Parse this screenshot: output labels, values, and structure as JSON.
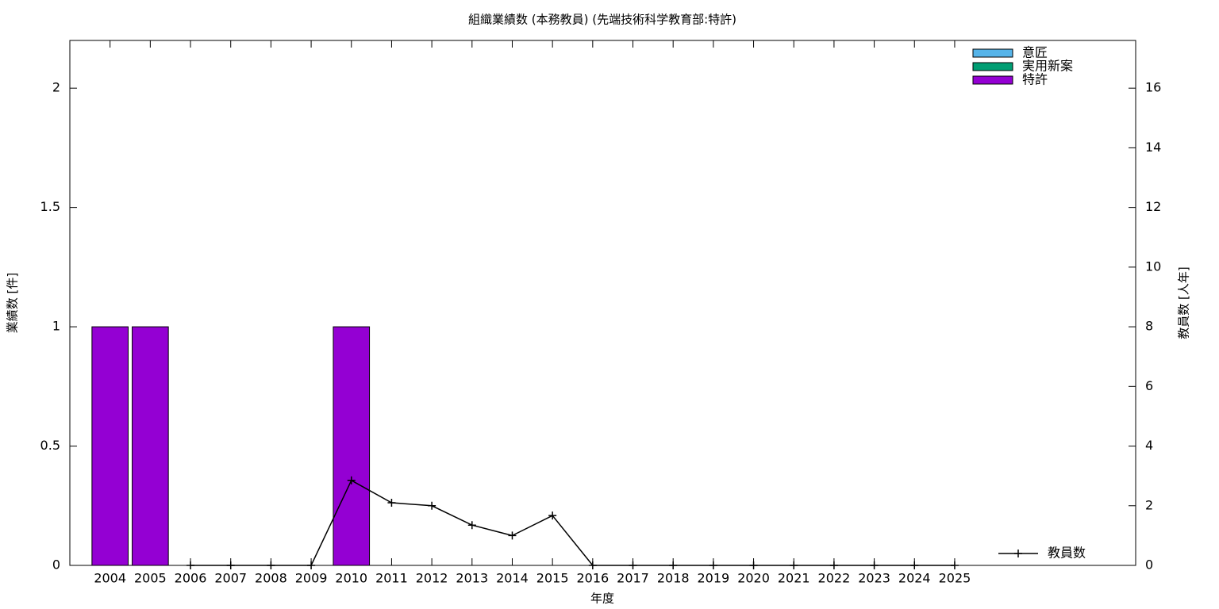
{
  "chart_data": {
    "type": "bar",
    "title": "組織業績数 (本務教員) (先端技術科学教育部:特許)",
    "x_label": "年度",
    "y_label": "業績数 [件]",
    "y2_label": "教員数 [人年]",
    "categories": [
      "2004",
      "2005",
      "2006",
      "2007",
      "2008",
      "2009",
      "2010",
      "2011",
      "2012",
      "2013",
      "2014",
      "2015",
      "2016",
      "2017",
      "2018",
      "2019",
      "2020",
      "2021",
      "2022",
      "2023",
      "2024",
      "2025"
    ],
    "stacked": true,
    "series": [
      {
        "name": "意匠",
        "type": "bar",
        "color": "#56b4e9",
        "values": [
          0,
          0,
          0,
          0,
          0,
          0,
          0,
          0,
          0,
          0,
          0,
          0,
          0,
          0,
          0,
          0,
          0,
          0,
          0,
          0,
          0,
          0
        ]
      },
      {
        "name": "実用新案",
        "type": "bar",
        "color": "#009e73",
        "values": [
          0,
          0,
          0,
          0,
          0,
          0,
          0,
          0,
          0,
          0,
          0,
          0,
          0,
          0,
          0,
          0,
          0,
          0,
          0,
          0,
          0,
          0
        ]
      },
      {
        "name": "特許",
        "type": "bar",
        "color": "#9400d3",
        "values": [
          1,
          1,
          0,
          0,
          0,
          0,
          1,
          0,
          0,
          0,
          0,
          0,
          0,
          0,
          0,
          0,
          0,
          0,
          0,
          0,
          0,
          0
        ]
      },
      {
        "name": "教員数",
        "type": "line",
        "axis": "y2",
        "color": "#000000",
        "values": [
          null,
          null,
          0,
          0,
          0,
          0,
          2.85,
          2.1,
          2.0,
          1.35,
          1.0,
          1.67,
          0,
          0,
          0,
          0,
          0,
          0,
          0,
          0,
          0,
          0
        ]
      }
    ],
    "ylim": [
      0,
      2.2
    ],
    "yticks": [
      0,
      0.5,
      1,
      1.5,
      2
    ],
    "y2lim": [
      0,
      17.6
    ],
    "y2ticks": [
      0,
      2,
      4,
      6,
      8,
      10,
      12,
      14,
      16
    ],
    "grid": false
  }
}
